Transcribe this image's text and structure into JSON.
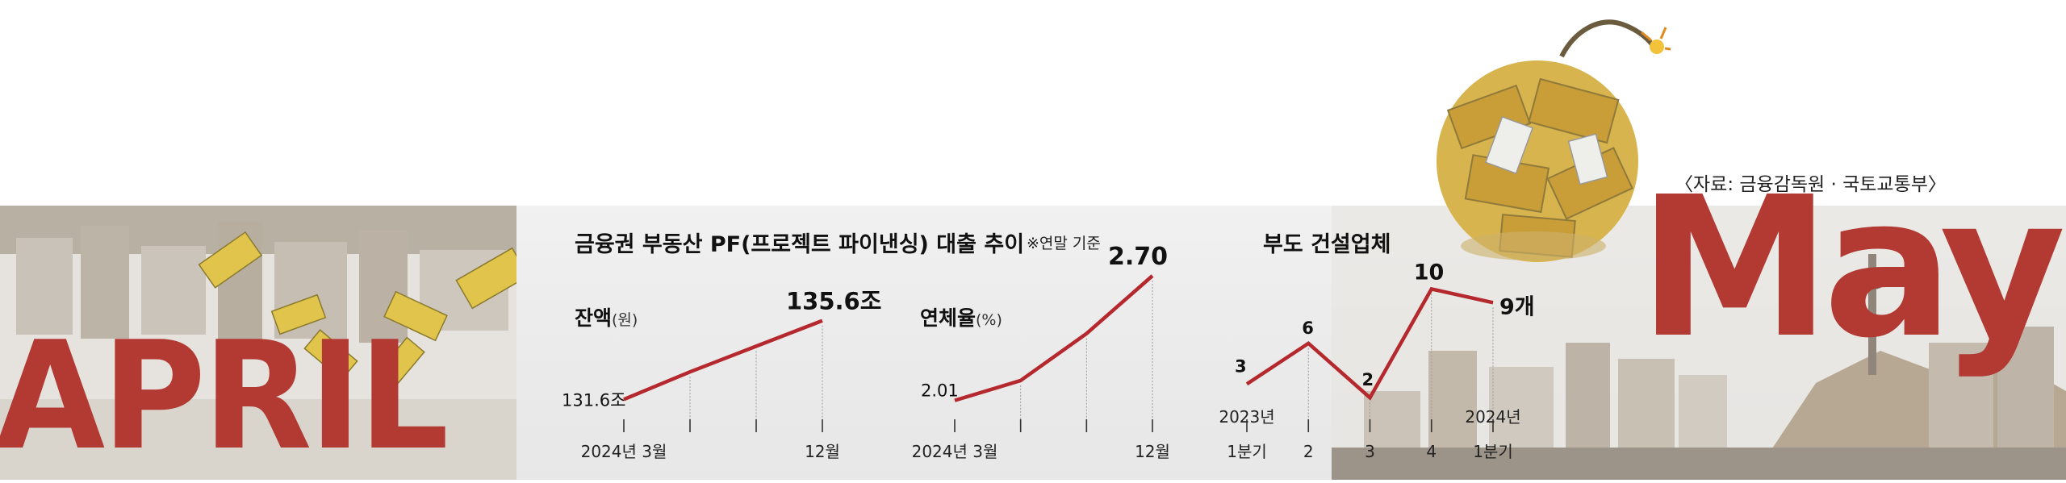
{
  "source": "〈자료: 금융감독원 · 국토교통부〉",
  "deco": {
    "april": "APRIL",
    "may": "May"
  },
  "header": {
    "title": "금융권 부동산 PF(프로젝트 파이낸싱) 대출 추이",
    "note": "※연말 기준",
    "title3": "부도 건설업체"
  },
  "colors": {
    "line": "#b5282d",
    "accent": "#b23a33"
  },
  "charts": {
    "balance": {
      "label": "잔액",
      "unit": "(원)"
    },
    "delinquency": {
      "label": "연체율",
      "unit": "(%)"
    }
  },
  "chart_data": [
    {
      "type": "line",
      "title": "잔액",
      "categories": [
        "2024년 3월",
        "",
        "",
        "12월"
      ],
      "values": [
        131.6,
        133.0,
        134.3,
        135.6
      ],
      "labels": {
        "first": "131.6조",
        "last": "135.6조"
      },
      "ylim": [
        131.0,
        136.2
      ]
    },
    {
      "type": "line",
      "title": "연체율",
      "categories": [
        "2024년 3월",
        "",
        "",
        "12월"
      ],
      "values": [
        2.01,
        2.12,
        2.38,
        2.7
      ],
      "labels": {
        "first": "2.01",
        "last": "2.70"
      },
      "ylim": [
        1.95,
        2.74
      ]
    },
    {
      "type": "line",
      "title": "부도 건설업체",
      "categories": [
        "2023년 1분기",
        "2",
        "3",
        "4",
        "2024년 1분기"
      ],
      "tick_top": [
        "2023년",
        "",
        "",
        "",
        "2024년"
      ],
      "tick_bottom": [
        "1분기",
        "2",
        "3",
        "4",
        "1분기"
      ],
      "values": [
        3,
        6,
        2,
        10,
        9
      ],
      "point_labels": [
        "3",
        "6",
        "2",
        "10",
        "9개"
      ],
      "ylim": [
        1,
        10.5
      ]
    }
  ]
}
